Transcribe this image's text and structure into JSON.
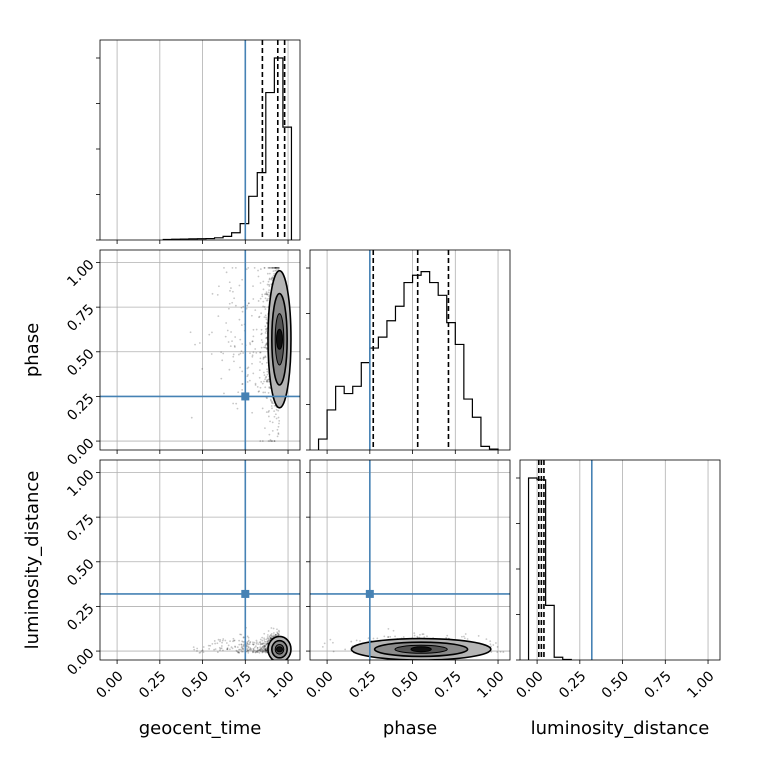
{
  "chart_data": {
    "type": "corner",
    "parameters": [
      "geocent_time",
      "phase",
      "luminosity_distance"
    ],
    "axis_labels": {
      "geocent_time": "geocent_time",
      "phase": "phase",
      "luminosity_distance": "luminosity_distance"
    },
    "tick_labels": [
      "0.00",
      "0.25",
      "0.50",
      "0.75",
      "1.00"
    ],
    "injection": {
      "geocent_time": 0.75,
      "phase": 0.25,
      "luminosity_distance": 0.32
    },
    "quantiles": {
      "geocent_time": [
        0.85,
        0.94,
        0.98
      ],
      "phase": [
        0.27,
        0.53,
        0.71
      ],
      "luminosity_distance": [
        0.01,
        0.025,
        0.04
      ]
    },
    "histograms": {
      "geocent_time": {
        "edges": [
          0.27,
          0.32,
          0.37,
          0.42,
          0.47,
          0.52,
          0.57,
          0.62,
          0.67,
          0.72,
          0.77,
          0.82,
          0.87,
          0.92,
          0.97,
          1.02
        ],
        "counts": [
          0.003,
          0.004,
          0.005,
          0.006,
          0.007,
          0.008,
          0.012,
          0.02,
          0.04,
          0.09,
          0.24,
          0.37,
          0.81,
          1.0,
          0.62
        ]
      },
      "phase": {
        "edges": [
          -0.05,
          0.0,
          0.05,
          0.1,
          0.15,
          0.2,
          0.25,
          0.3,
          0.35,
          0.4,
          0.45,
          0.5,
          0.55,
          0.6,
          0.65,
          0.7,
          0.75,
          0.8,
          0.85,
          0.9,
          0.95,
          1.0
        ],
        "counts": [
          0.06,
          0.22,
          0.35,
          0.31,
          0.35,
          0.48,
          0.56,
          0.62,
          0.71,
          0.79,
          0.92,
          0.96,
          0.98,
          0.92,
          0.85,
          0.7,
          0.58,
          0.28,
          0.18,
          0.02,
          0.005
        ]
      },
      "luminosity_distance": {
        "edges": [
          -0.05,
          0.0,
          0.05,
          0.1,
          0.15,
          0.2
        ],
        "counts": [
          1.0,
          0.99,
          0.3,
          0.015,
          0.003
        ]
      }
    },
    "panels_2d": [
      {
        "x": "geocent_time",
        "y": "phase",
        "center": [
          0.95,
          0.57
        ],
        "spread": [
          0.028,
          0.16
        ]
      },
      {
        "x": "geocent_time",
        "y": "luminosity_distance",
        "center": [
          0.95,
          0.01
        ],
        "spread": [
          0.028,
          0.03
        ]
      },
      {
        "x": "phase",
        "y": "luminosity_distance",
        "center": [
          0.55,
          0.01
        ],
        "spread": [
          0.17,
          0.025
        ]
      }
    ],
    "ylim": [
      -0.05,
      1.07
    ],
    "xlim": [
      -0.1,
      1.07
    ],
    "grid": true
  },
  "colors": {
    "injection": "#4682b4",
    "hist": "#000000",
    "grid": "#b0b0b0",
    "contour_dark": "#111111",
    "contour_mid": "#555555",
    "contour_light": "#b5b5b5"
  }
}
